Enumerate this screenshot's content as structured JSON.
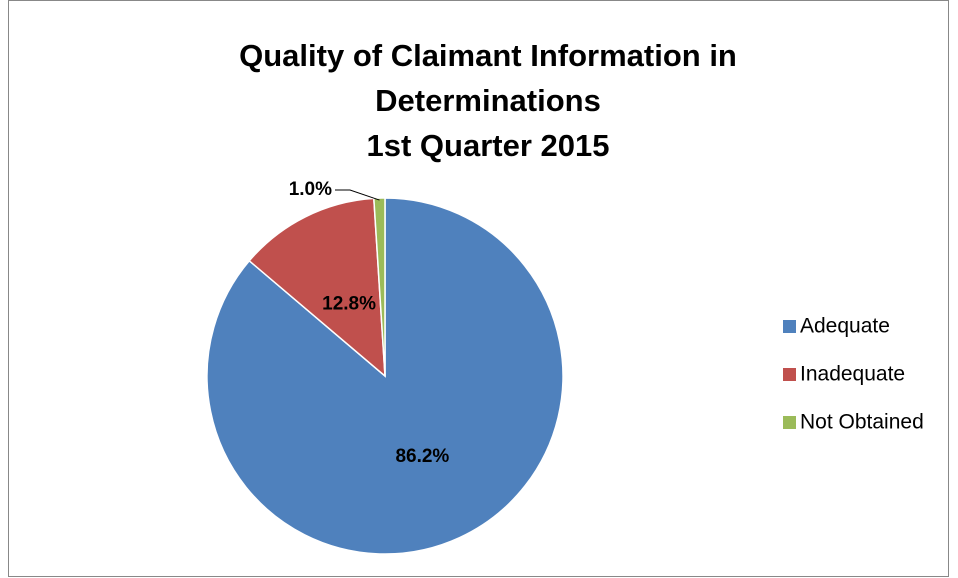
{
  "chart_data": {
    "type": "pie",
    "title": [
      "Quality of Claimant Information in",
      "Determinations",
      "1st Quarter 2015"
    ],
    "categories": [
      "Adequate",
      "Inadequate",
      "Not Obtained"
    ],
    "values": [
      86.2,
      12.8,
      1.0
    ],
    "value_labels": [
      "86.2%",
      "12.8%",
      "1.0%"
    ],
    "colors": [
      "#4f81bd",
      "#c0504d",
      "#9bbb59"
    ],
    "legend": "right"
  }
}
